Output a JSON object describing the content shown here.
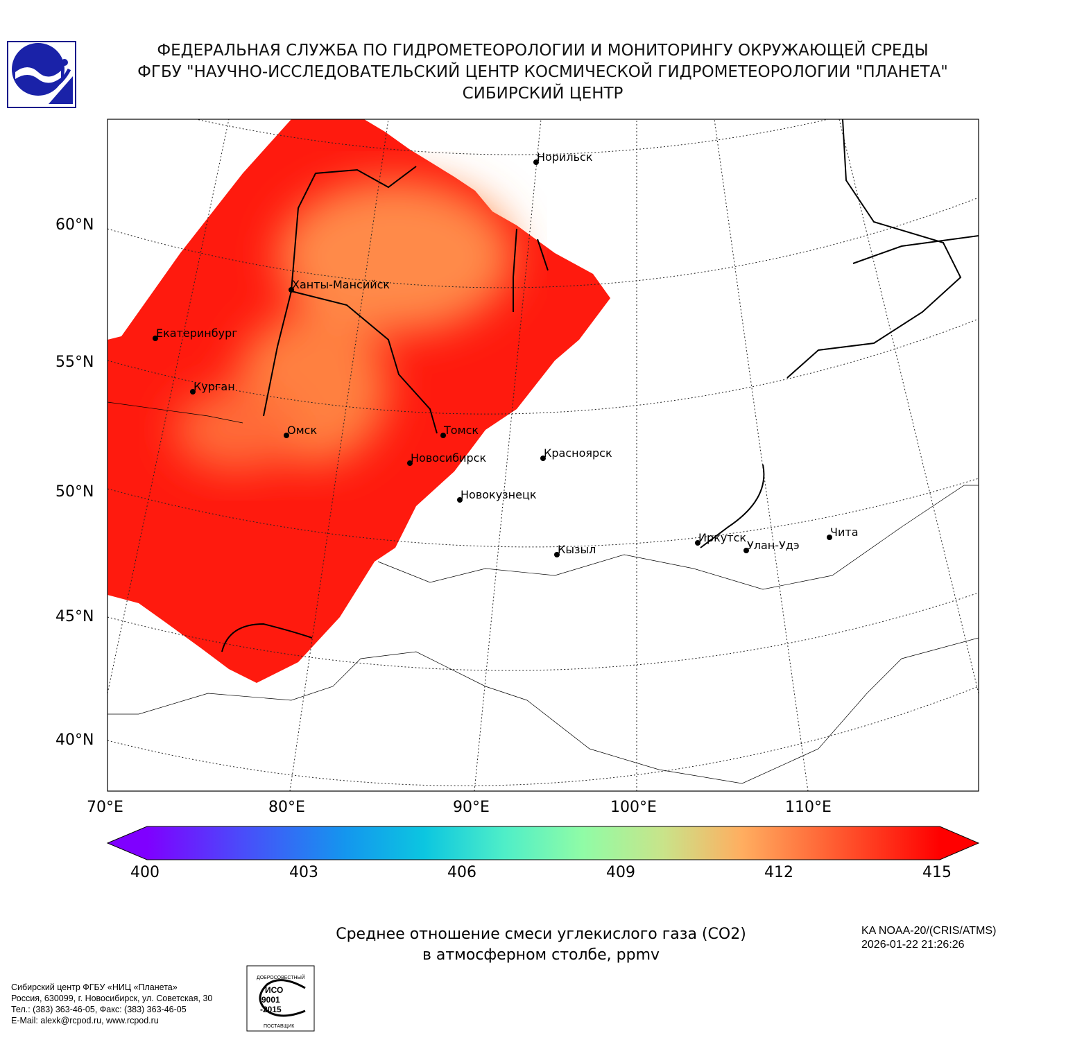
{
  "header": {
    "line1": "ФЕДЕРАЛЬНАЯ СЛУЖБА ПО ГИДРОМЕТЕОРОЛОГИИ И МОНИТОРИНГУ ОКРУЖАЮЩЕЙ СРЕДЫ",
    "line2": "ФГБУ \"НАУЧНО-ИССЛЕДОВАТЕЛЬСКИЙ ЦЕНТР КОСМИЧЕСКОЙ ГИДРОМЕТЕОРОЛОГИИ \"ПЛАНЕТА\"",
    "line3": "СИБИРСКИЙ ЦЕНТР"
  },
  "map": {
    "lat_labels": [
      "60°N",
      "55°N",
      "50°N",
      "45°N",
      "40°N"
    ],
    "lon_labels": [
      "70°E",
      "80°E",
      "90°E",
      "100°E",
      "110°E"
    ],
    "cities": [
      "Норильск",
      "Ханты-Мансийск",
      "Екатеринбург",
      "Курган",
      "Омск",
      "Томск",
      "Новосибирск",
      "Красноярск",
      "Новокузнецк",
      "Кызыл",
      "Иркутск",
      "Улан-Удэ",
      "Чита"
    ],
    "colors": {
      "high": "#ff1a0e",
      "mid": "#ff7a40"
    }
  },
  "colorbar": {
    "min": 400,
    "max": 415,
    "ticks": [
      "400",
      "403",
      "406",
      "409",
      "412",
      "415"
    ],
    "colors": [
      "#7f00ff",
      "#3d5ff8",
      "#05b2e6",
      "#45eccc",
      "#8cfca6",
      "#d0dc84",
      "#ffa55a",
      "#ff5a2e",
      "#ff0000"
    ]
  },
  "title": {
    "line1": "Среднее отношение смеси углекислого газа (CO2)",
    "line2": "в атмосферном столбе, ppmv"
  },
  "satellite": {
    "name": "KA NOAA-20/(CRIS/ATMS)",
    "datetime": "2026-01-22 21:26:26"
  },
  "footer": {
    "line1": "Сибирский центр ФГБУ «НИЦ «Планета»",
    "line2": "Россия, 630099, г. Новосибирск, ул. Советская, 30",
    "line3": "Тел.: (383) 363-46-05, Факс: (383) 363-46-05",
    "line4": "E-Mail: alexk@rcpod.ru, www.rcpod.ru"
  },
  "iso_stamp": {
    "top": "ДОБРОСОВЕСТНЫЙ",
    "center": "ИСО 9001 -2015",
    "bottom": "ПОСТАВЩИК"
  }
}
